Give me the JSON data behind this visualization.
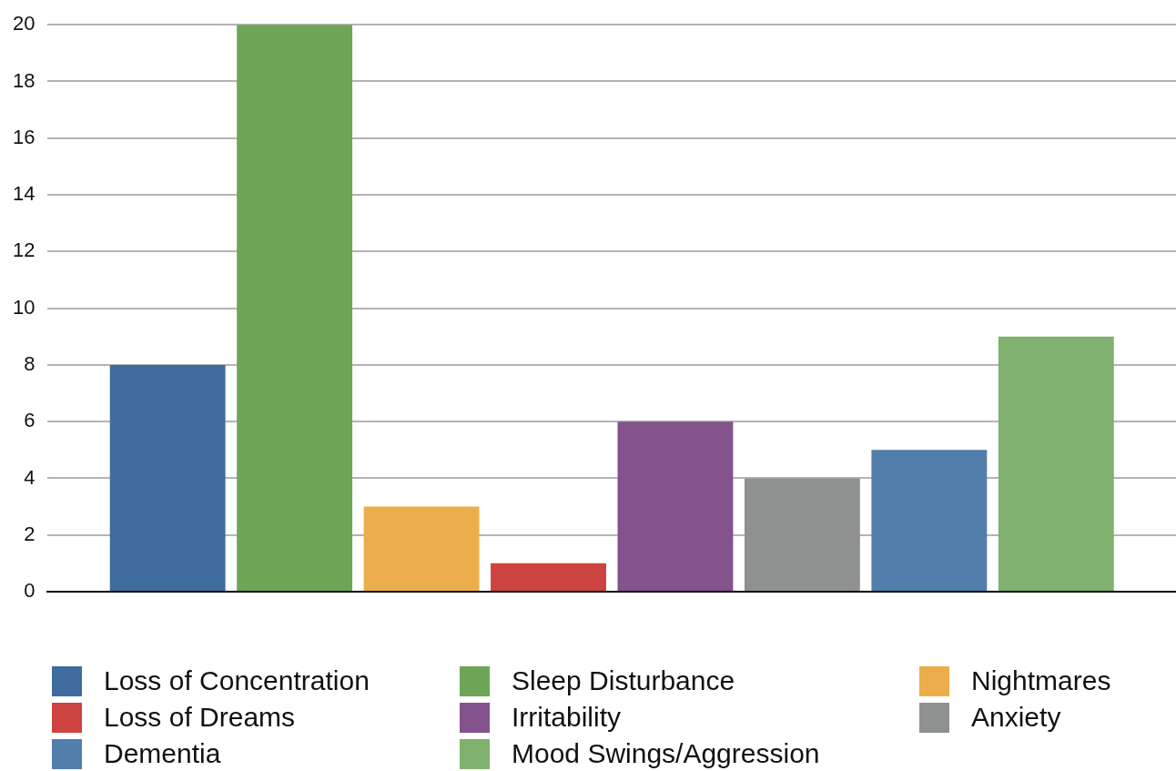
{
  "chart_data": {
    "type": "bar",
    "categories": [
      null
    ],
    "series": [
      {
        "name": "Loss of Concentration",
        "color": "#3e6c9e",
        "values": [
          8
        ]
      },
      {
        "name": "Sleep Disturbance",
        "color": "#6ea557",
        "values": [
          20
        ]
      },
      {
        "name": "Nightmares",
        "color": "#ecae4a",
        "values": [
          3
        ]
      },
      {
        "name": "Loss of Dreams",
        "color": "#cc4340",
        "values": [
          1
        ]
      },
      {
        "name": "Irritability",
        "color": "#84528c",
        "values": [
          6
        ]
      },
      {
        "name": "Anxiety",
        "color": "#8f9190",
        "values": [
          4
        ]
      },
      {
        "name": "Dementia",
        "color": "#517eab",
        "values": [
          5
        ]
      },
      {
        "name": "Mood Swings/Aggression",
        "color": "#80b16e",
        "values": [
          9
        ]
      }
    ],
    "ylim": [
      0,
      20
    ],
    "yticks": [
      0,
      2,
      4,
      6,
      8,
      10,
      12,
      14,
      16,
      18,
      20
    ],
    "grid": "y",
    "legend": "bottom",
    "tick_labels": "y"
  }
}
